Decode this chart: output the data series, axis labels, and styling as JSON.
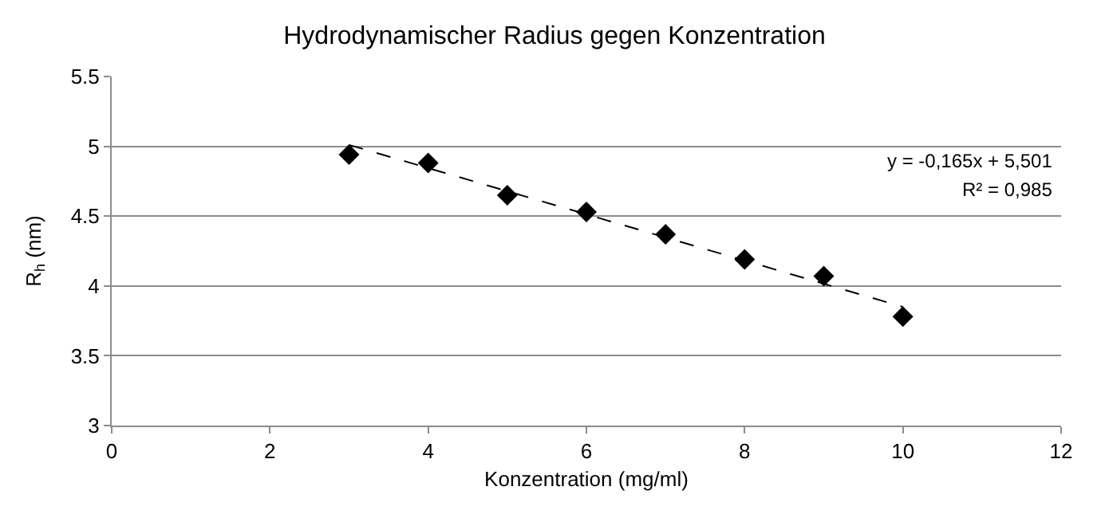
{
  "chart_data": {
    "type": "scatter",
    "title": "Hydrodynamischer Radius gegen Konzentration",
    "xlabel": "Konzentration (mg/ml)",
    "ylabel": "R$_{h}$ (nm)",
    "xlim": [
      0,
      12
    ],
    "xticks": [
      0,
      2,
      4,
      6,
      8,
      10,
      12
    ],
    "ylim": [
      3,
      5.5
    ],
    "yticks": [
      3,
      3.5,
      4,
      4.5,
      5,
      5.5
    ],
    "grid": "y",
    "series": [
      {
        "color": "#000000",
        "marker": "diamond",
        "x": [
          3,
          4,
          5,
          6,
          7,
          8,
          9,
          10
        ],
        "values": [
          4.94,
          4.88,
          4.65,
          4.53,
          4.37,
          4.19,
          4.07,
          3.78
        ]
      },
      {
        "type": "line",
        "color": "#000000",
        "line_style": "dashed",
        "marker": "none",
        "x": [
          3,
          10
        ],
        "values": [
          5.01,
          3.85
        ]
      }
    ],
    "annotations": [
      "y = -0,165x + 5,501",
      "R² = 0,985"
    ]
  }
}
